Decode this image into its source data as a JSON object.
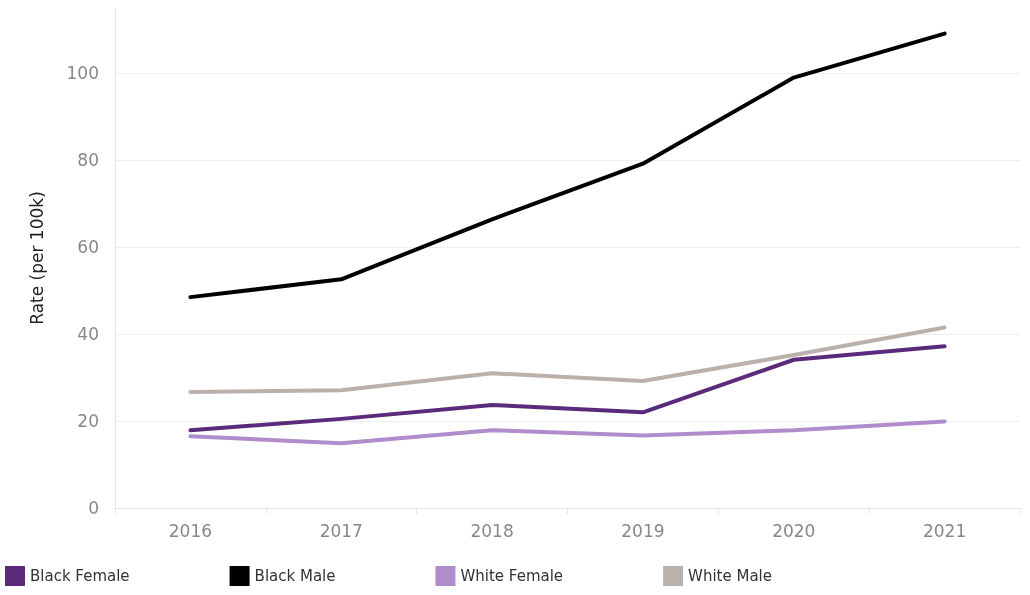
{
  "chart_data": {
    "type": "line",
    "ylabel": "Rate (per 100k)",
    "categories": [
      "2016",
      "2017",
      "2018",
      "2019",
      "2020",
      "2021"
    ],
    "series": [
      {
        "name": "Black Female",
        "color": "#5b2a7a",
        "values": [
          17.9,
          20.5,
          23.7,
          22,
          34.1,
          37.2
        ]
      },
      {
        "name": "Black Male",
        "color": "#000000",
        "values": [
          48.5,
          52.6,
          66.4,
          79.2,
          99,
          109.1
        ]
      },
      {
        "name": "White Female",
        "color": "#b08ccc",
        "values": [
          16.5,
          14.9,
          17.9,
          16.7,
          17.9,
          19.9
        ]
      },
      {
        "name": "White Male",
        "color": "#bab0ac",
        "values": [
          26.7,
          27.1,
          31,
          29.2,
          35.2,
          41.5
        ]
      }
    ],
    "ylim": [
      0,
      115
    ],
    "yticks": [
      0,
      20,
      40,
      60,
      80,
      100
    ],
    "grid": "y",
    "legend": "bottom",
    "marker": "none",
    "line_style": "solid"
  }
}
